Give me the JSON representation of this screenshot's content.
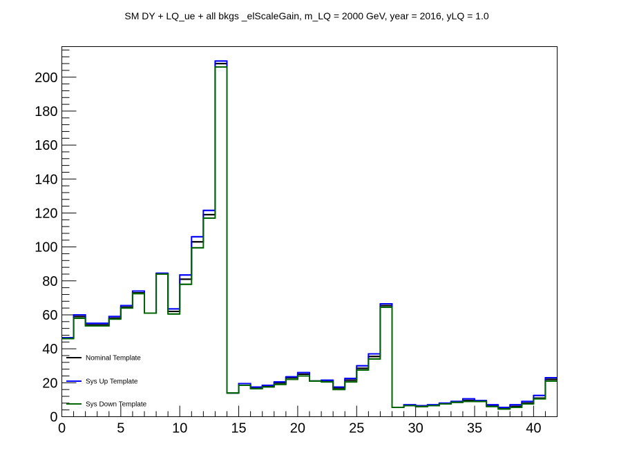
{
  "chart_data": {
    "type": "line",
    "style": "step-histogram",
    "title": "SM DY + LQ_ue + all bkgs _elScaleGain, m_LQ = 2000 GeV, year = 2016, yLQ = 1.0",
    "xlabel": "",
    "ylabel": "",
    "xlim": [
      0,
      42
    ],
    "ylim": [
      0,
      218
    ],
    "x_ticks": [
      0,
      5,
      10,
      15,
      20,
      25,
      30,
      35,
      40
    ],
    "y_ticks": [
      0,
      20,
      40,
      60,
      80,
      100,
      120,
      140,
      160,
      180,
      200
    ],
    "bin_edges": [
      0,
      1,
      2,
      3,
      4,
      5,
      6,
      7,
      8,
      9,
      10,
      11,
      12,
      13,
      14,
      15,
      16,
      17,
      18,
      19,
      20,
      21,
      22,
      23,
      24,
      25,
      26,
      27,
      28,
      29,
      30,
      31,
      32,
      33,
      34,
      35,
      36,
      37,
      38,
      39,
      40,
      41,
      42
    ],
    "legend_position": "bottom-left",
    "grid": false,
    "series": [
      {
        "name": "Nominal Template",
        "color": "#000000",
        "values": [
          46.5,
          59,
          54,
          54,
          58,
          64.5,
          73,
          61,
          84,
          62,
          81,
          103,
          119,
          208,
          14,
          18.5,
          17,
          18,
          20,
          23,
          25,
          21,
          21,
          17,
          21.5,
          28.5,
          35.5,
          65.5,
          5.5,
          6.5,
          6,
          6.5,
          7.5,
          8.5,
          9.5,
          9,
          6.5,
          5,
          6,
          8,
          11,
          22
        ]
      },
      {
        "name": "Sys Up Template",
        "color": "#0000ff",
        "values": [
          46.5,
          60,
          55,
          55,
          59,
          65.5,
          74,
          61,
          84.5,
          63.5,
          83.5,
          106,
          121.5,
          209.5,
          14,
          19.5,
          17.5,
          18.5,
          20.5,
          23.5,
          26,
          21,
          21.5,
          17.5,
          22.5,
          30,
          37,
          66.5,
          5.5,
          7,
          6.5,
          7,
          8,
          9,
          10.5,
          9.5,
          7,
          5.5,
          7,
          9,
          12.5,
          23
        ]
      },
      {
        "name": "Sys Down Template",
        "color": "#006400",
        "values": [
          46,
          58,
          53.5,
          53.5,
          57.5,
          64,
          72.5,
          61,
          84,
          60.5,
          78,
          99.5,
          117,
          206,
          14,
          18.5,
          16.5,
          17.5,
          19,
          22,
          24,
          21,
          20.5,
          16,
          20.5,
          27.5,
          34,
          64.5,
          5.5,
          6.5,
          6,
          6.5,
          7.5,
          8.5,
          9,
          9,
          6,
          4.5,
          5.5,
          7.5,
          10.5,
          21
        ]
      }
    ]
  }
}
